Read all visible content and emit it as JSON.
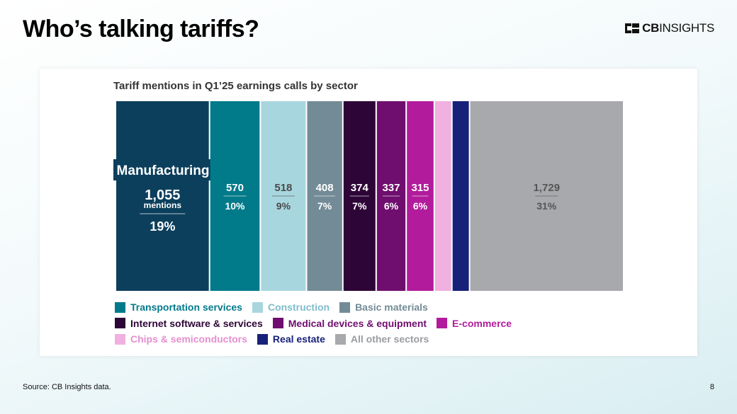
{
  "page": {
    "title": "Who’s talking tariffs?",
    "source": "Source: CB Insights data.",
    "page_number": "8"
  },
  "logo": {
    "bold": "CB",
    "rest": "INSIGHTS"
  },
  "chart_data": {
    "type": "bar",
    "subtype": "stacked-100-horizontal-blocks",
    "title": "Tariff mentions in Q1’25 earnings calls by sector",
    "categories": [
      "Manufacturing",
      "Transportation services",
      "Construction",
      "Basic materials",
      "Internet software & services",
      "Medical devices & equipment",
      "E-commerce",
      "Chips & semiconductors",
      "Real estate",
      "All other sectors"
    ],
    "values": [
      1055,
      570,
      518,
      408,
      374,
      337,
      315,
      198,
      198,
      1729
    ],
    "value_labels": [
      "1,055",
      "570",
      "518",
      "408",
      "374",
      "337",
      "315",
      "",
      "",
      "1,729"
    ],
    "percent_labels": [
      "19%",
      "10%",
      "9%",
      "7%",
      "7%",
      "6%",
      "6%",
      "",
      "",
      "31%"
    ],
    "colors": [
      "#0c3f5c",
      "#017a8a",
      "#a8d6df",
      "#738b96",
      "#2e0537",
      "#6f0e6e",
      "#b21b9c",
      "#f0b0e0",
      "#17217a",
      "#a7a9ad"
    ],
    "label_colors": [
      "#ffffff",
      "#ffffff",
      "#4a4a4a",
      "#ffffff",
      "#ffffff",
      "#ffffff",
      "#ffffff",
      "#ffffff",
      "#ffffff",
      "#555555"
    ],
    "unit_label": "mentions",
    "callout": "Manufacturing",
    "legend_rows": [
      [
        {
          "label": "Transportation services",
          "color": "#017a8a"
        },
        {
          "label": "Construction",
          "color": "#a8d6df"
        },
        {
          "label": "Basic materials",
          "color": "#738b96"
        }
      ],
      [
        {
          "label": "Internet software & services",
          "color": "#2e0537"
        },
        {
          "label": "Medical devices & equipment",
          "color": "#6f0e6e"
        },
        {
          "label": "E-commerce",
          "color": "#b21b9c"
        }
      ],
      [
        {
          "label": "Chips & semiconductors",
          "color": "#f0b0e0"
        },
        {
          "label": "Real estate",
          "color": "#17217a"
        },
        {
          "label": "All other sectors",
          "color": "#a7a9ad"
        }
      ]
    ]
  }
}
